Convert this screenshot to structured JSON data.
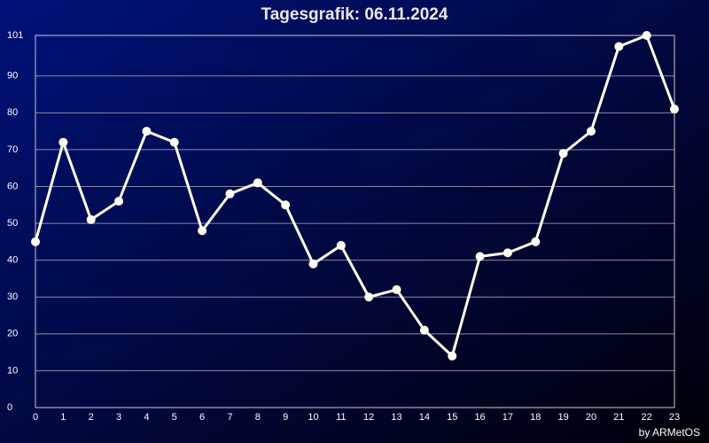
{
  "chart_data": {
    "type": "line",
    "title": "Tagesgrafik: 06.11.2024",
    "credit": "by ARMetOS",
    "x": [
      0,
      1,
      2,
      3,
      4,
      5,
      6,
      7,
      8,
      9,
      10,
      11,
      12,
      13,
      14,
      15,
      16,
      17,
      18,
      19,
      20,
      21,
      22,
      23
    ],
    "series": [
      {
        "color": "#fffff0",
        "values": [
          45,
          72,
          51,
          56,
          75,
          72,
          48,
          58,
          61,
          55,
          39,
          44,
          30,
          32,
          21,
          14,
          41,
          42,
          45,
          69,
          75,
          98,
          101,
          81
        ]
      }
    ],
    "xlim": [
      0,
      23
    ],
    "xticks": [
      0,
      1,
      2,
      3,
      4,
      5,
      6,
      7,
      8,
      9,
      10,
      11,
      12,
      13,
      14,
      15,
      16,
      17,
      18,
      19,
      20,
      21,
      22,
      23
    ],
    "ylim": [
      0,
      101
    ],
    "yticks": [
      0,
      10,
      20,
      30,
      40,
      50,
      60,
      70,
      80,
      90,
      101
    ],
    "grid": true
  }
}
